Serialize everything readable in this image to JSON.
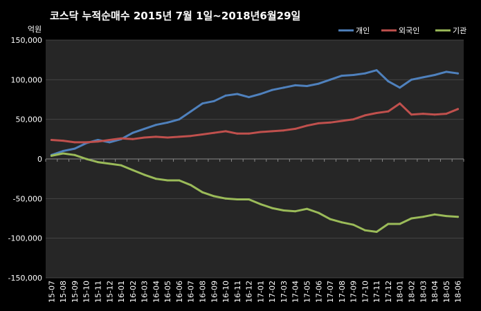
{
  "chart_data": {
    "type": "line",
    "title": "코스닥  누적순매수 2015년 7월 1일~2018년6월29일",
    "y_unit": "억원",
    "ylim": [
      -150000,
      150000
    ],
    "y_ticks": [
      150000,
      100000,
      50000,
      0,
      -50000,
      -100000,
      -150000
    ],
    "y_tick_labels": [
      "150,000",
      "100,000",
      "50,000",
      "0",
      "-50,000",
      "-100,000",
      "-150,000"
    ],
    "grid": true,
    "legend_position": "top-right",
    "x": [
      "15-07",
      "15-08",
      "15-09",
      "15-10",
      "15-11",
      "15-12",
      "16-01",
      "16-02",
      "16-03",
      "16-04",
      "16-05",
      "16-06",
      "16-07",
      "16-08",
      "16-09",
      "16-10",
      "16-11",
      "16-12",
      "17-01",
      "17-02",
      "17-03",
      "17-04",
      "17-05",
      "17-06",
      "17-07",
      "17-08",
      "17-09",
      "17-10",
      "17-11",
      "17-12",
      "18-01",
      "18-02",
      "18-03",
      "18-04",
      "18-05",
      "18-06"
    ],
    "series": [
      {
        "name": "개인",
        "color": "#4f81bd",
        "values": [
          5000,
          10000,
          13000,
          20000,
          24000,
          21000,
          25000,
          33000,
          38000,
          43000,
          46000,
          50000,
          60000,
          70000,
          73000,
          80000,
          82000,
          78000,
          82000,
          87000,
          90000,
          93000,
          92000,
          95000,
          100000,
          105000,
          106000,
          108000,
          112000,
          98000,
          90000,
          100000,
          103000,
          106000,
          110000,
          108000
        ]
      },
      {
        "name": "외국인",
        "color": "#c0504d",
        "values": [
          24000,
          23000,
          21000,
          21000,
          22000,
          24000,
          26000,
          25000,
          27000,
          28000,
          27000,
          28000,
          29000,
          31000,
          33000,
          35000,
          32000,
          32000,
          34000,
          35000,
          36000,
          38000,
          42000,
          45000,
          46000,
          48000,
          50000,
          55000,
          58000,
          60000,
          70000,
          56000,
          57000,
          56000,
          57000,
          63000
        ]
      },
      {
        "name": "기관",
        "color": "#9bbb59",
        "values": [
          4000,
          7000,
          5000,
          0,
          -4000,
          -6000,
          -8000,
          -14000,
          -20000,
          -25000,
          -27000,
          -27000,
          -33000,
          -42000,
          -47000,
          -50000,
          -51000,
          -51000,
          -57000,
          -62000,
          -65000,
          -66000,
          -63000,
          -68000,
          -76000,
          -80000,
          -83000,
          -90000,
          -92000,
          -82000,
          -82000,
          -75000,
          -73000,
          -70000,
          -72000,
          -73000
        ]
      }
    ]
  }
}
